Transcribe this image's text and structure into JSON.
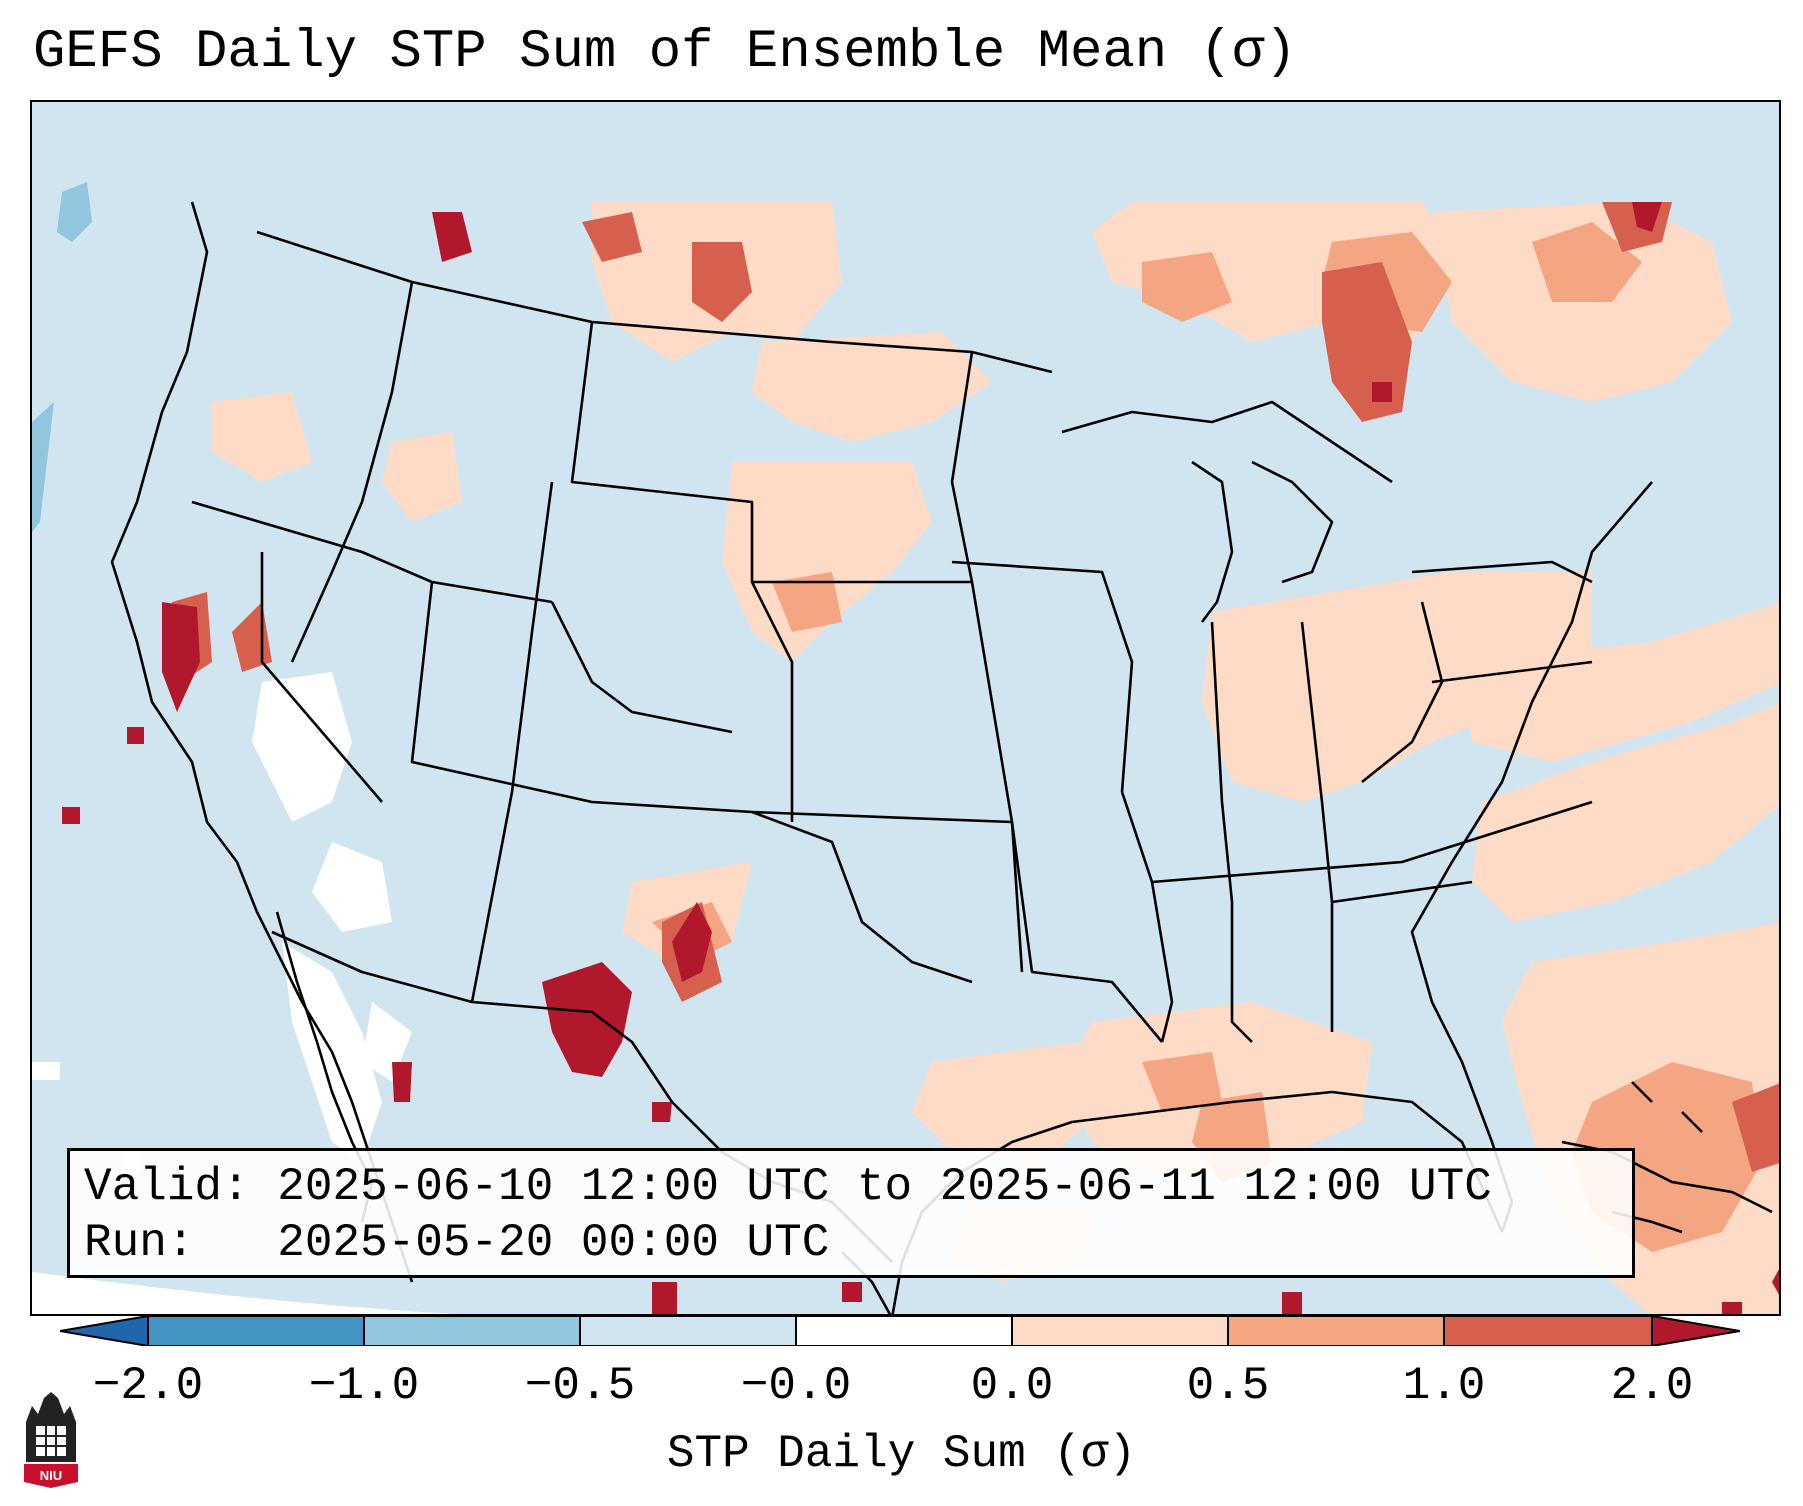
{
  "title": "GEFS Daily STP Sum of Ensemble Mean (σ)",
  "info": {
    "valid_label": "Valid:",
    "valid_value": "2025-06-10 12:00 UTC to 2025-06-11 12:00 UTC",
    "run_label": "Run:",
    "run_value": "2025-05-20 00:00 UTC"
  },
  "colorbar": {
    "label": "STP Daily Sum (σ)",
    "tick_labels": [
      "−2.0",
      "−1.0",
      "−0.5",
      "−0.0",
      "0.0",
      "0.5",
      "1.0",
      "2.0"
    ],
    "bins": [
      {
        "from": "−2.0",
        "to": "−1.0",
        "color": "#4393c3"
      },
      {
        "from": "−1.0",
        "to": "−0.5",
        "color": "#92c5de"
      },
      {
        "from": "−0.5",
        "to": "−0.0",
        "color": "#d1e5f0"
      },
      {
        "from": "−0.0",
        "to": "0.0",
        "color": "#ffffff"
      },
      {
        "from": "0.0",
        "to": "0.5",
        "color": "#fddbc7"
      },
      {
        "from": "0.5",
        "to": "1.0",
        "color": "#f4a582"
      },
      {
        "from": "1.0",
        "to": "2.0",
        "color": "#d6604d"
      }
    ],
    "under_color": "#2166ac",
    "over_color": "#b2182b"
  },
  "map": {
    "region": "Contiguous United States, southern Canada and northern Mexico",
    "projection": "Lambert Conformal",
    "background_color": "#d1e5f0",
    "highlighted_areas": [
      {
        "area": "southern Ontario / Quebec",
        "level": "0.5 to 2.0+"
      },
      {
        "area": "North Dakota / Montana / southern Saskatchewan",
        "level": "0.0 to 2.0+"
      },
      {
        "area": "northern California",
        "level": "1.0 to 2.0+"
      },
      {
        "area": "southeastern Arizona / southwestern New Mexico",
        "level": "2.0+"
      },
      {
        "area": "Gulf of Mexico coast",
        "level": "0.0 to 1.0"
      },
      {
        "area": "Greater Antilles / western Atlantic",
        "level": "0.0 to 2.0+"
      },
      {
        "area": "Baja California / Gulf of California",
        "level": "-0.0 to 0.0"
      }
    ]
  },
  "logo": {
    "text": "NIU",
    "icon": "university-building-icon"
  }
}
